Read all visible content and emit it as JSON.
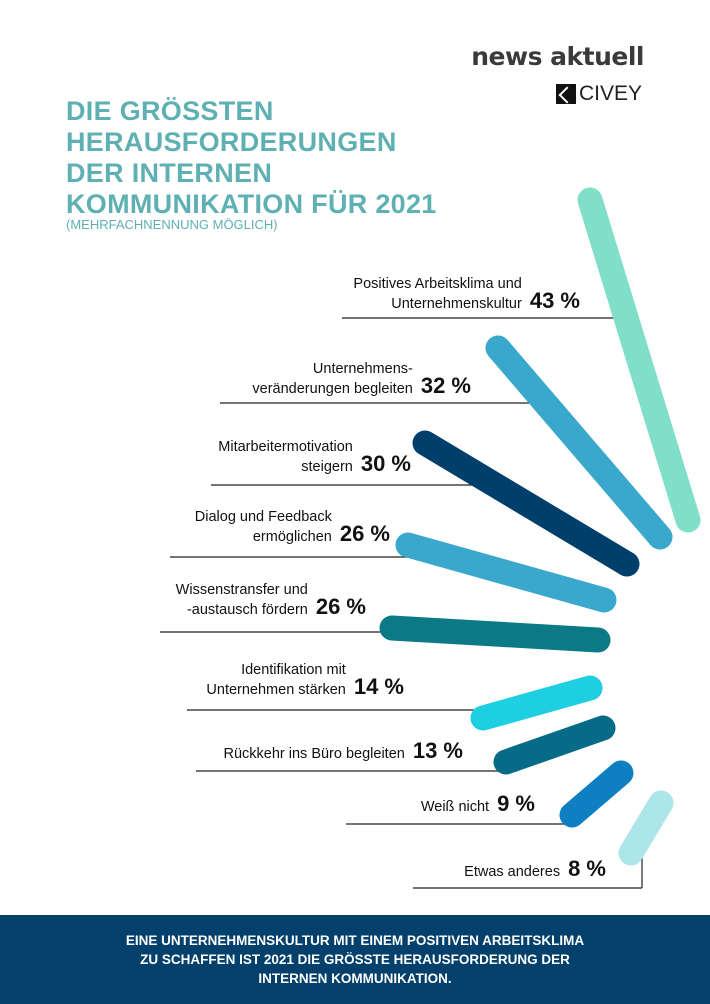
{
  "brand": {
    "name": "news aktuell",
    "partner": "CIVEY"
  },
  "chart_data": {
    "type": "bar",
    "title": [
      "DIE GRÖSSTEN",
      "HERAUSFORDERUNGEN",
      "DER INTERNEN",
      "KOMMUNIKATION FÜR 2021"
    ],
    "subtitle": "(MEHRFACHNENNUNG MÖGLICH)",
    "unit": "%",
    "items": [
      {
        "label": [
          "Positives Arbeitsklima und",
          "Unternehmenskultur"
        ],
        "value": 43,
        "value_label": "43 %",
        "color": "#80dfc8"
      },
      {
        "label": [
          "Unternehmens-",
          "veränderungen begleiten"
        ],
        "value": 32,
        "value_label": "32 %",
        "color": "#3aa7cd"
      },
      {
        "label": [
          "Mitarbeitermotivation",
          "steigern"
        ],
        "value": 30,
        "value_label": "30 %",
        "color": "#003f6b"
      },
      {
        "label": [
          "Dialog und Feedback",
          "ermöglichen"
        ],
        "value": 26,
        "value_label": "26 %",
        "color": "#3aa7cd"
      },
      {
        "label": [
          "Wissenstransfer und",
          "-austausch fördern"
        ],
        "value": 26,
        "value_label": "26 %",
        "color": "#0b7a86"
      },
      {
        "label": [
          "Identifikation mit",
          "Unternehmen stärken"
        ],
        "value": 14,
        "value_label": "14 %",
        "color": "#1dcfe0"
      },
      {
        "label": [
          "Rückkehr ins Büro begleiten"
        ],
        "value": 13,
        "value_label": "13 %",
        "color": "#066b86"
      },
      {
        "label": [
          "Weiß nicht"
        ],
        "value": 9,
        "value_label": "9 %",
        "color": "#0e80c1"
      },
      {
        "label": [
          "Etwas anderes"
        ],
        "value": 8,
        "value_label": "8 %",
        "color": "#ace6e8"
      }
    ]
  },
  "footer": [
    "EINE UNTERNEHMENSKULTUR MIT EINEM POSITIVEN ARBEITSKLIMA",
    "ZU SCHAFFEN IST 2021 DIE GRÖSSTE HERAUSFORDERUNG DER",
    "INTERNEN KOMMUNIKATION."
  ]
}
